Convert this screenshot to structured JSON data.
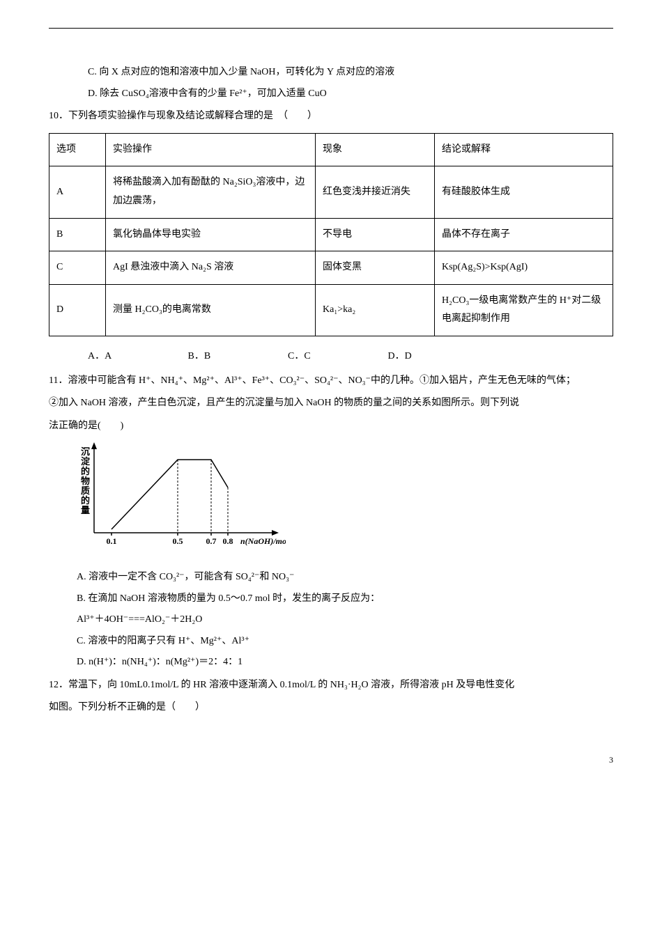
{
  "line_c": "C. 向 X 点对应的饱和溶液中加入少量 NaOH，可转化为 Y 点对应的溶液",
  "line_d": "D. 除去 CuSO₄溶液中含有的少量 Fe²⁺，可加入适量 CuO",
  "q10": "10．下列各项实验操作与现象及结论或解释合理的是　（　　）",
  "table": {
    "headers": [
      "选项",
      "实验操作",
      "现象",
      "结论或解释"
    ],
    "rows": [
      [
        "A",
        "将稀盐酸滴入加有酚酞的 Na₂SiO₃溶液中，边加边震荡，",
        "红色变浅并接近消失",
        "有硅酸胶体生成"
      ],
      [
        "B",
        "氯化钠晶体导电实验",
        "不导电",
        "晶体不存在离子"
      ],
      [
        "C",
        "AgI 悬浊液中滴入 Na₂S 溶液",
        "固体变黑",
        "Ksp(Ag₂S)>Ksp(AgI)"
      ],
      [
        "D",
        "测量 H₂CO₃的电离常数",
        "Ka₁>ka₂",
        "H₂CO₃一级电离常数产生的 H⁺对二级电离起抑制作用"
      ]
    ]
  },
  "opts10": {
    "a": "A．A",
    "b": "B．B",
    "c": "C．C",
    "d": "D．D"
  },
  "q11_1": "11．溶液中可能含有 H⁺、NH₄⁺、Mg²⁺、Al³⁺、Fe³⁺、CO₃²⁻、SO₄²⁻、NO₃⁻中的几种。①加入铝片，产生无色无味的气体；",
  "q11_2": "②加入 NaOH 溶液，产生白色沉淀，且产生的沉淀量与加入 NaOH 的物质的量之间的关系如图所示。则下列说",
  "q11_3": "法正确的是(　　)",
  "chart": {
    "y_label": "沉淀的物质的量",
    "x_label": "n(NaOH)/mol",
    "x_ticks": [
      "0.1",
      "0.5",
      "0.7",
      "0.8"
    ],
    "x_tick_pos": [
      25,
      120,
      168,
      192
    ],
    "y_tick_pos": 120,
    "line_color": "#000",
    "axis_color": "#000",
    "bg": "#fff",
    "x_max": 260,
    "y_max": 125,
    "points": [
      [
        25,
        120
      ],
      [
        120,
        20
      ],
      [
        168,
        20
      ],
      [
        192,
        60
      ]
    ]
  },
  "q11_optA": "A. 溶液中一定不含 CO₃²⁻，可能含有 SO₄²⁻和 NO₃⁻",
  "q11_optB": "B. 在滴加 NaOH 溶液物质的量为 0.5～0.7 mol 时，发生的离子反应为：",
  "q11_optB2": "Al³⁺＋4OH⁻===AlO₂⁻＋2H₂O",
  "q11_optC": "C. 溶液中的阳离子只有 H⁺、Mg²⁺、Al³⁺",
  "q11_optD": "D. n(H⁺)：n(NH₄⁺)：n(Mg²⁺)＝2：4：1",
  "q12_1": "12．常温下，向 10mL0.1mol/L 的 HR 溶液中逐渐滴入 0.1mol/L 的 NH₃·H₂O 溶液，所得溶液 pH 及导电性变化",
  "q12_2": "如图。下列分析不正确的是（　　）",
  "page": "3"
}
